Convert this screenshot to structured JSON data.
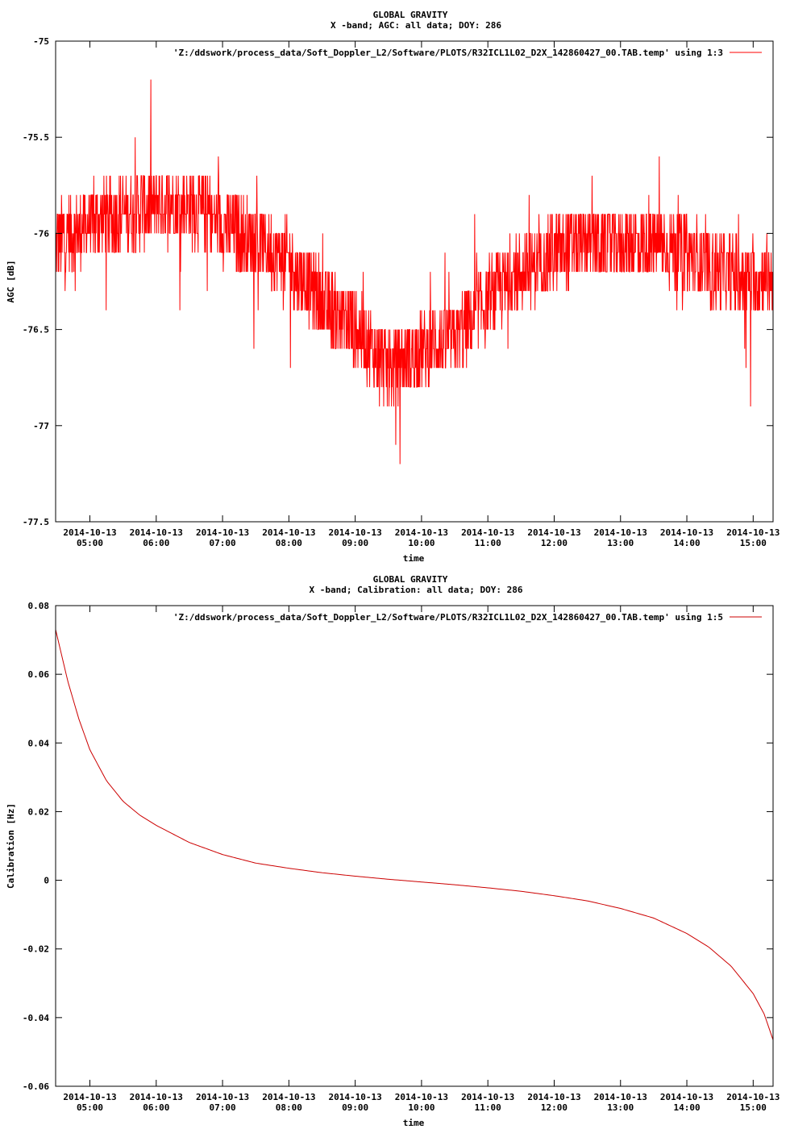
{
  "chart_data": [
    {
      "type": "line",
      "title": "GLOBAL GRAVITY",
      "subtitle": "X -band; AGC: all data; DOY: 286",
      "xlabel": "time",
      "ylabel": "AGC [dB]",
      "legend": "'Z:/ddswork/process_data/Soft_Doppler_L2/Software/PLOTS/R32ICL1L02_D2X_142860427_00.TAB.temp' using 1:3",
      "legend_position": "top-right",
      "color": "#ff0000",
      "xlim": [
        "2014-10-13 04:29",
        "2014-10-13 15:18"
      ],
      "ylim": [
        -77.5,
        -75
      ],
      "yticks": [
        -75,
        -75.5,
        -76,
        -76.5,
        -77,
        -77.5
      ],
      "xticks": [
        {
          "date": "2014-10-13",
          "time": "05:00",
          "value": "2014-10-13 05:00"
        },
        {
          "date": "2014-10-13",
          "time": "06:00",
          "value": "2014-10-13 06:00"
        },
        {
          "date": "2014-10-13",
          "time": "07:00",
          "value": "2014-10-13 07:00"
        },
        {
          "date": "2014-10-13",
          "time": "08:00",
          "value": "2014-10-13 08:00"
        },
        {
          "date": "2014-10-13",
          "time": "09:00",
          "value": "2014-10-13 09:00"
        },
        {
          "date": "2014-10-13",
          "time": "10:00",
          "value": "2014-10-13 10:00"
        },
        {
          "date": "2014-10-13",
          "time": "11:00",
          "value": "2014-10-13 11:00"
        },
        {
          "date": "2014-10-13",
          "time": "12:00",
          "value": "2014-10-13 12:00"
        },
        {
          "date": "2014-10-13",
          "time": "13:00",
          "value": "2014-10-13 13:00"
        },
        {
          "date": "2014-10-13",
          "time": "14:00",
          "value": "2014-10-13 14:00"
        },
        {
          "date": "2014-10-13",
          "time": "15:00",
          "value": "2014-10-13 15:00"
        }
      ],
      "trend": {
        "x": [
          "2014-10-13 04:29",
          "2014-10-13 05:00",
          "2014-10-13 05:30",
          "2014-10-13 06:00",
          "2014-10-13 06:30",
          "2014-10-13 07:00",
          "2014-10-13 07:30",
          "2014-10-13 08:00",
          "2014-10-13 08:30",
          "2014-10-13 09:00",
          "2014-10-13 09:30",
          "2014-10-13 10:00",
          "2014-10-13 10:30",
          "2014-10-13 11:00",
          "2014-10-13 11:30",
          "2014-10-13 12:00",
          "2014-10-13 12:30",
          "2014-10-13 13:00",
          "2014-10-13 13:30",
          "2014-10-13 14:00",
          "2014-10-13 14:30",
          "2014-10-13 15:00",
          "2014-10-13 15:18"
        ],
        "y": [
          -76.05,
          -75.95,
          -75.9,
          -75.85,
          -75.85,
          -75.95,
          -76.05,
          -76.15,
          -76.35,
          -76.5,
          -76.7,
          -76.6,
          -76.55,
          -76.35,
          -76.2,
          -76.1,
          -76.05,
          -76.05,
          -76.05,
          -76.1,
          -76.2,
          -76.25,
          -76.2
        ]
      },
      "noise_amplitude_db": 0.2
    },
    {
      "type": "line",
      "title": "GLOBAL GRAVITY",
      "subtitle": "X -band; Calibration: all data; DOY: 286",
      "xlabel": "time",
      "ylabel": "Calibration [Hz]",
      "legend": "'Z:/ddswork/process_data/Soft_Doppler_L2/Software/PLOTS/R32ICL1L02_D2X_142860427_00.TAB.temp' using 1:5",
      "legend_position": "top-right",
      "color": "#cc0000",
      "xlim": [
        "2014-10-13 04:29",
        "2014-10-13 15:18"
      ],
      "ylim": [
        -0.06,
        0.08
      ],
      "yticks": [
        0.08,
        0.06,
        0.04,
        0.02,
        0,
        -0.02,
        -0.04,
        -0.06
      ],
      "xticks": [
        {
          "date": "2014-10-13",
          "time": "05:00",
          "value": "2014-10-13 05:00"
        },
        {
          "date": "2014-10-13",
          "time": "06:00",
          "value": "2014-10-13 06:00"
        },
        {
          "date": "2014-10-13",
          "time": "07:00",
          "value": "2014-10-13 07:00"
        },
        {
          "date": "2014-10-13",
          "time": "08:00",
          "value": "2014-10-13 08:00"
        },
        {
          "date": "2014-10-13",
          "time": "09:00",
          "value": "2014-10-13 09:00"
        },
        {
          "date": "2014-10-13",
          "time": "10:00",
          "value": "2014-10-13 10:00"
        },
        {
          "date": "2014-10-13",
          "time": "11:00",
          "value": "2014-10-13 11:00"
        },
        {
          "date": "2014-10-13",
          "time": "12:00",
          "value": "2014-10-13 12:00"
        },
        {
          "date": "2014-10-13",
          "time": "13:00",
          "value": "2014-10-13 13:00"
        },
        {
          "date": "2014-10-13",
          "time": "14:00",
          "value": "2014-10-13 14:00"
        },
        {
          "date": "2014-10-13",
          "time": "15:00",
          "value": "2014-10-13 15:00"
        }
      ],
      "series": [
        {
          "x": [
            "2014-10-13 04:29",
            "2014-10-13 04:40",
            "2014-10-13 04:50",
            "2014-10-13 05:00",
            "2014-10-13 05:15",
            "2014-10-13 05:30",
            "2014-10-13 05:45",
            "2014-10-13 06:00",
            "2014-10-13 06:30",
            "2014-10-13 07:00",
            "2014-10-13 07:30",
            "2014-10-13 08:00",
            "2014-10-13 08:30",
            "2014-10-13 09:00",
            "2014-10-13 09:30",
            "2014-10-13 10:00",
            "2014-10-13 10:30",
            "2014-10-13 11:00",
            "2014-10-13 11:30",
            "2014-10-13 12:00",
            "2014-10-13 12:30",
            "2014-10-13 13:00",
            "2014-10-13 13:30",
            "2014-10-13 14:00",
            "2014-10-13 14:20",
            "2014-10-13 14:40",
            "2014-10-13 15:00",
            "2014-10-13 15:10",
            "2014-10-13 15:18"
          ],
          "y": [
            0.073,
            0.058,
            0.047,
            0.038,
            0.029,
            0.023,
            0.019,
            0.016,
            0.011,
            0.0075,
            0.005,
            0.0035,
            0.0022,
            0.0012,
            0.0003,
            -0.0005,
            -0.0013,
            -0.0022,
            -0.0032,
            -0.0045,
            -0.006,
            -0.0082,
            -0.011,
            -0.0155,
            -0.0195,
            -0.025,
            -0.033,
            -0.039,
            -0.0465
          ]
        }
      ]
    }
  ]
}
